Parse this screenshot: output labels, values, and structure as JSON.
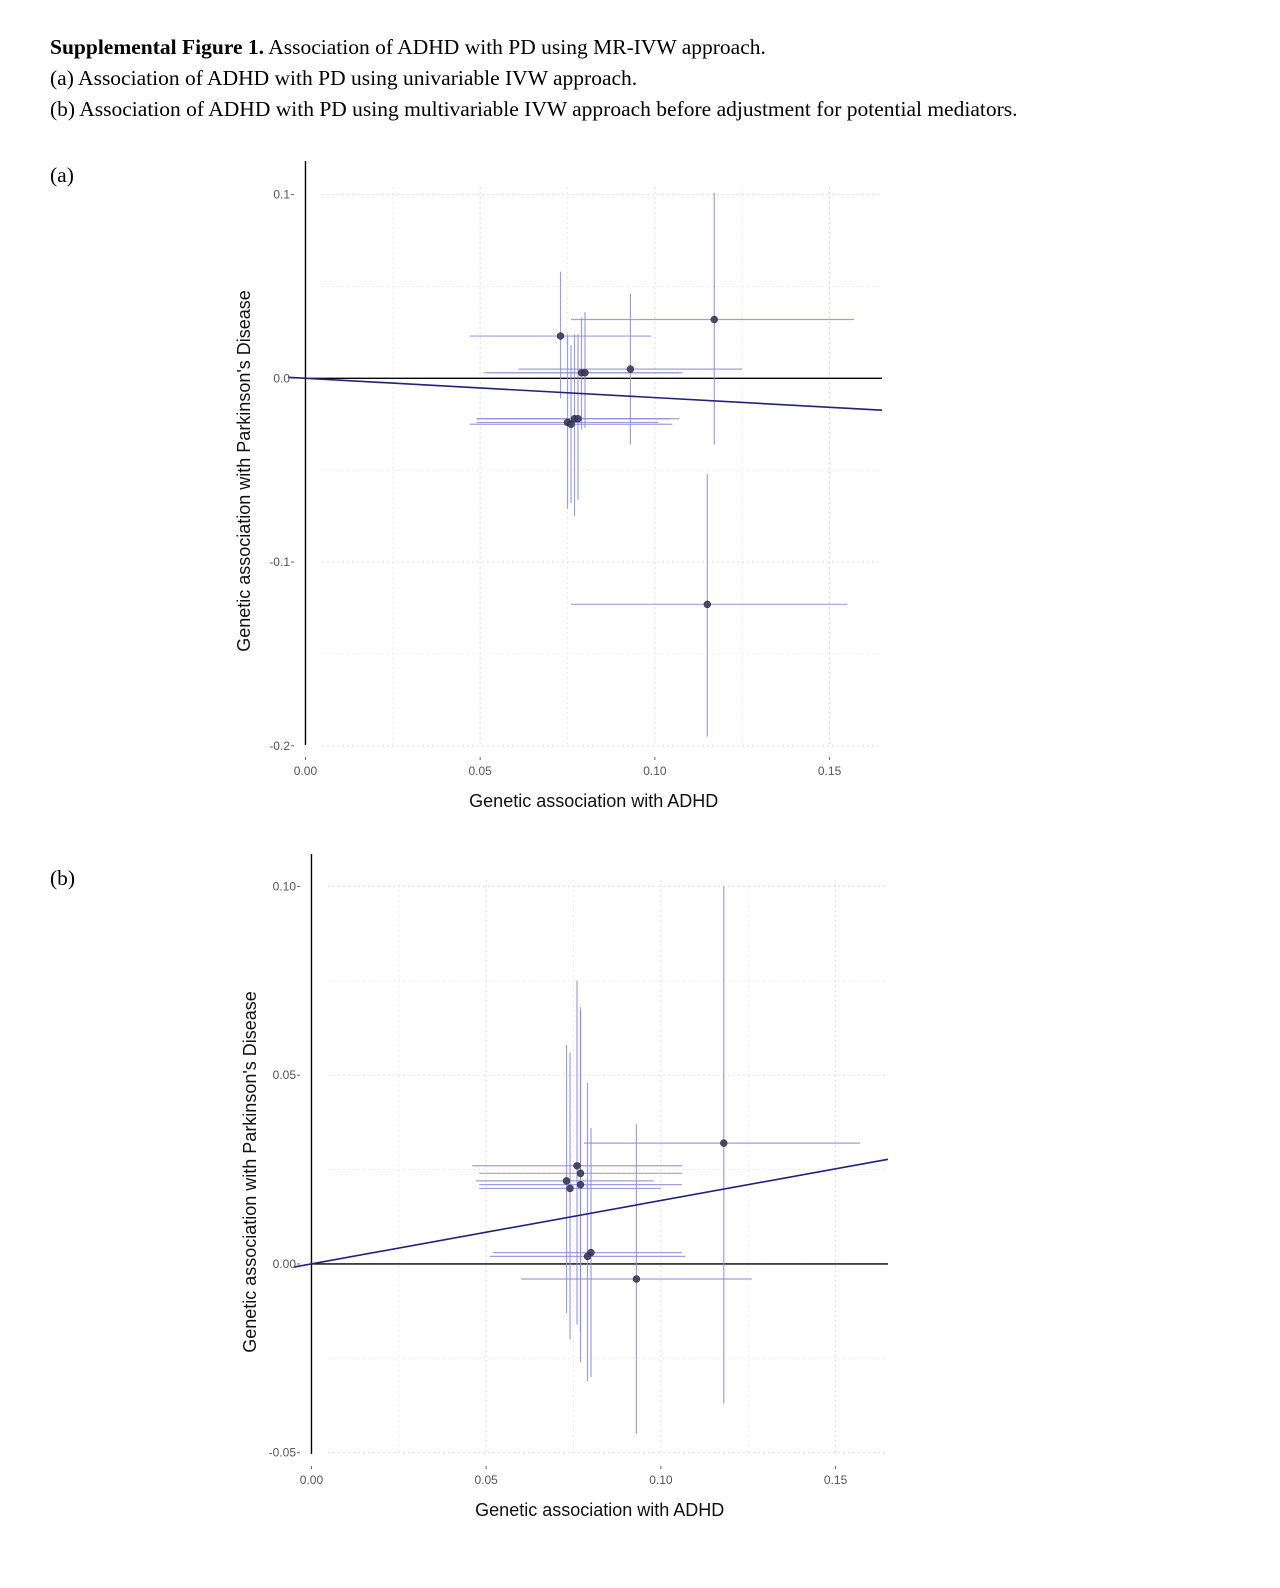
{
  "caption": {
    "title_bold": "Supplemental Figure 1.",
    "title_rest": " Association of ADHD with PD using MR-IVW approach.",
    "line_a": "(a) Association of ADHD with PD using univariable IVW approach.",
    "line_b": "(b) Association of ADHD with PD using multivariable IVW approach before adjustment for potential mediators."
  },
  "panels": {
    "a_label": "(a)",
    "b_label": "(b)"
  },
  "colors": {
    "errorbar": "#8f8fd8",
    "fit_line": "#22227a",
    "point": "#3a3a5c",
    "axis": "#000000",
    "grid": "#dddddd"
  },
  "chart_data": [
    {
      "type": "scatter",
      "panel": "a",
      "xlabel": "Genetic association with ADHD",
      "ylabel": "Genetic association with Parkinson's Disease",
      "xlim": [
        -0.005,
        0.165
      ],
      "ylim": [
        -0.205,
        0.115
      ],
      "xticks": [
        0.0,
        0.05,
        0.1,
        0.15
      ],
      "xtick_labels": [
        "0.00",
        "0.05",
        "0.10",
        "0.15"
      ],
      "yticks": [
        0.1,
        0.0,
        -0.1,
        -0.2
      ],
      "ytick_labels": [
        "0.1",
        "0.0",
        "-0.1",
        "-0.2"
      ],
      "grid": true,
      "fit_slope": -0.105,
      "points": [
        {
          "x": 0.073,
          "y": 0.023,
          "xmin": 0.047,
          "xmax": 0.099,
          "ymin": -0.011,
          "ymax": 0.058
        },
        {
          "x": 0.117,
          "y": 0.032,
          "xmin": 0.076,
          "xmax": 0.157,
          "ymin": -0.036,
          "ymax": 0.101
        },
        {
          "x": 0.093,
          "y": 0.005,
          "xmin": 0.061,
          "xmax": 0.125,
          "ymin": -0.036,
          "ymax": 0.046
        },
        {
          "x": 0.079,
          "y": 0.003,
          "xmin": 0.051,
          "xmax": 0.107,
          "ymin": -0.028,
          "ymax": 0.033
        },
        {
          "x": 0.08,
          "y": 0.003,
          "xmin": 0.052,
          "xmax": 0.108,
          "ymin": -0.027,
          "ymax": 0.036
        },
        {
          "x": 0.075,
          "y": -0.024,
          "xmin": 0.049,
          "xmax": 0.101,
          "ymin": -0.071,
          "ymax": 0.024
        },
        {
          "x": 0.076,
          "y": -0.025,
          "xmin": 0.047,
          "xmax": 0.105,
          "ymin": -0.068,
          "ymax": 0.018
        },
        {
          "x": 0.077,
          "y": -0.022,
          "xmin": 0.049,
          "xmax": 0.104,
          "ymin": -0.075,
          "ymax": 0.024
        },
        {
          "x": 0.078,
          "y": -0.022,
          "xmin": 0.049,
          "xmax": 0.107,
          "ymin": -0.066,
          "ymax": 0.024
        },
        {
          "x": 0.115,
          "y": -0.123,
          "xmin": 0.076,
          "xmax": 0.155,
          "ymin": -0.195,
          "ymax": -0.052
        }
      ]
    },
    {
      "type": "scatter",
      "panel": "b",
      "xlabel": "Genetic association with ADHD",
      "ylabel": "Genetic association with Parkinson's Disease",
      "xlim": [
        -0.005,
        0.165
      ],
      "ylim": [
        -0.053,
        0.107
      ],
      "xticks": [
        0.0,
        0.05,
        0.1,
        0.15
      ],
      "xtick_labels": [
        "0.00",
        "0.05",
        "0.10",
        "0.15"
      ],
      "yticks": [
        0.1,
        0.05,
        0.0,
        -0.05
      ],
      "ytick_labels": [
        "0.10",
        "0.05",
        "0.00",
        "-0.05"
      ],
      "grid": true,
      "fit_slope": 0.168,
      "points": [
        {
          "x": 0.118,
          "y": 0.032,
          "xmin": 0.078,
          "xmax": 0.157,
          "ymin": -0.037,
          "ymax": 0.1
        },
        {
          "x": 0.076,
          "y": 0.026,
          "xmin": 0.046,
          "xmax": 0.106,
          "ymin": -0.016,
          "ymax": 0.075
        },
        {
          "x": 0.077,
          "y": 0.024,
          "xmin": 0.048,
          "xmax": 0.106,
          "ymin": -0.026,
          "ymax": 0.068
        },
        {
          "x": 0.073,
          "y": 0.022,
          "xmin": 0.047,
          "xmax": 0.098,
          "ymin": -0.013,
          "ymax": 0.058
        },
        {
          "x": 0.077,
          "y": 0.021,
          "xmin": 0.048,
          "xmax": 0.106,
          "ymin": -0.018,
          "ymax": 0.067
        },
        {
          "x": 0.074,
          "y": 0.02,
          "xmin": 0.048,
          "xmax": 0.1,
          "ymin": -0.02,
          "ymax": 0.056
        },
        {
          "x": 0.08,
          "y": 0.003,
          "xmin": 0.052,
          "xmax": 0.106,
          "ymin": -0.03,
          "ymax": 0.036
        },
        {
          "x": 0.079,
          "y": 0.002,
          "xmin": 0.051,
          "xmax": 0.107,
          "ymin": -0.031,
          "ymax": 0.048
        },
        {
          "x": 0.093,
          "y": -0.004,
          "xmin": 0.06,
          "xmax": 0.126,
          "ymin": -0.045,
          "ymax": 0.037
        }
      ]
    }
  ]
}
